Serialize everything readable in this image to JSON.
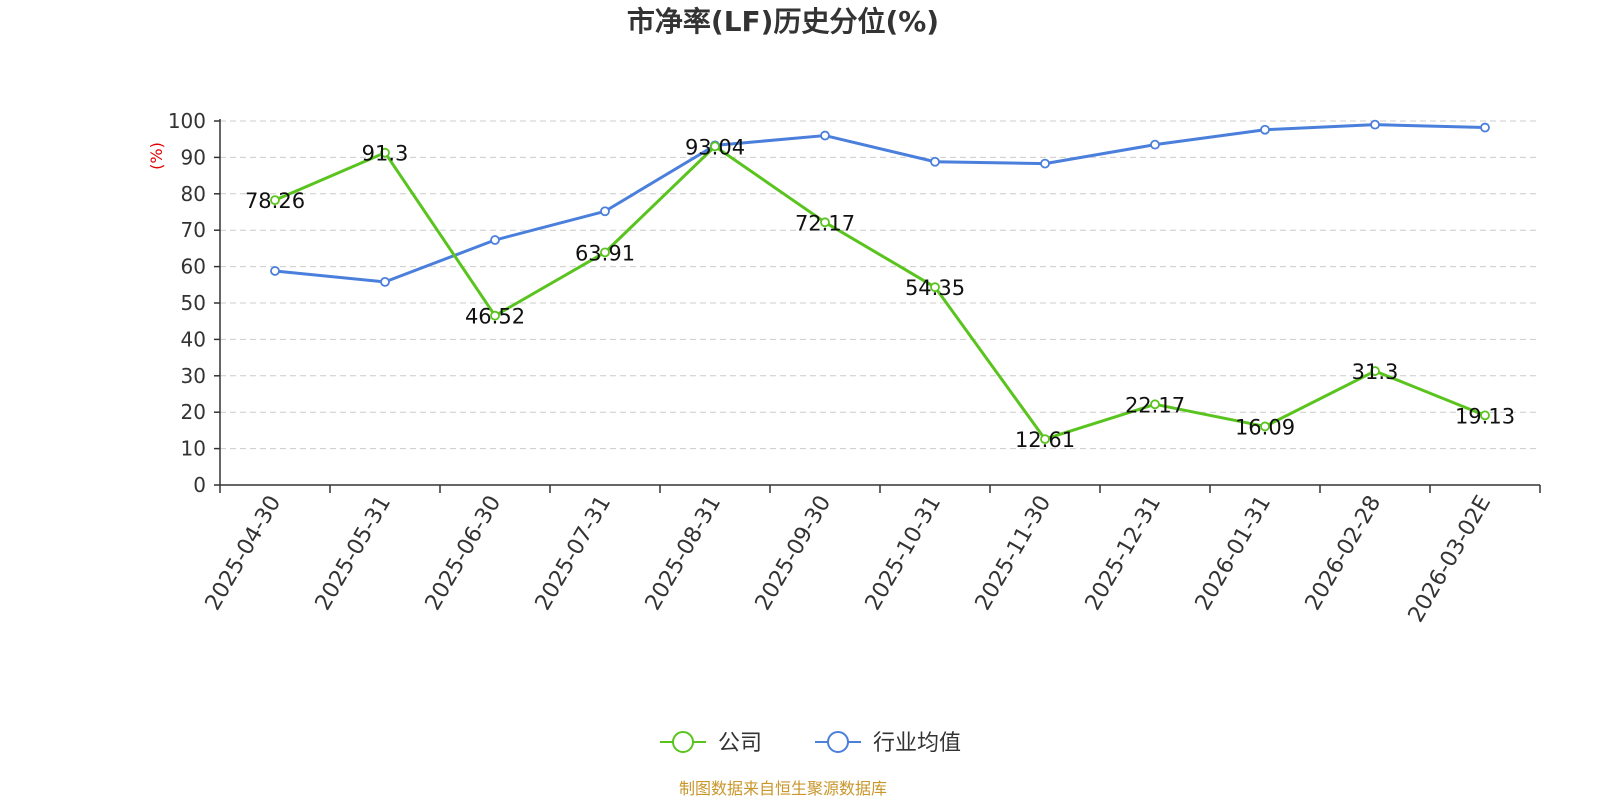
{
  "chart_data": {
    "type": "line",
    "title": "市净率(LF)历史分位(%)",
    "ylabel": "(%)",
    "ylim": [
      0,
      100
    ],
    "yticks": [
      0,
      10,
      20,
      30,
      40,
      50,
      60,
      70,
      80,
      90,
      100
    ],
    "categories": [
      "2025-04-30",
      "2025-05-31",
      "2025-06-30",
      "2025-07-31",
      "2025-08-31",
      "2025-09-30",
      "2025-10-31",
      "2025-11-30",
      "2025-12-31",
      "2026-01-31",
      "2026-02-28",
      "2026-03-02E"
    ],
    "series": [
      {
        "name": "公司",
        "color": "#5ac41e",
        "values": [
          78.26,
          91.3,
          46.52,
          63.91,
          93.04,
          72.17,
          54.35,
          12.61,
          22.17,
          16.09,
          31.3,
          19.13
        ],
        "labels": [
          "78.26",
          "91.3",
          "46.52",
          "63.91",
          "93.04",
          "72.17",
          "54.35",
          "12.61",
          "22.17",
          "16.09",
          "31.3",
          "19.13"
        ]
      },
      {
        "name": "行业均值",
        "color": "#4a7fdc",
        "values": [
          58.8,
          55.8,
          67.3,
          75.2,
          93.3,
          96.0,
          88.8,
          88.3,
          93.5,
          97.6,
          99.0,
          98.2
        ]
      }
    ],
    "grid": true,
    "legend_position": "bottom"
  },
  "source_text": "制图数据来自恒生聚源数据库"
}
